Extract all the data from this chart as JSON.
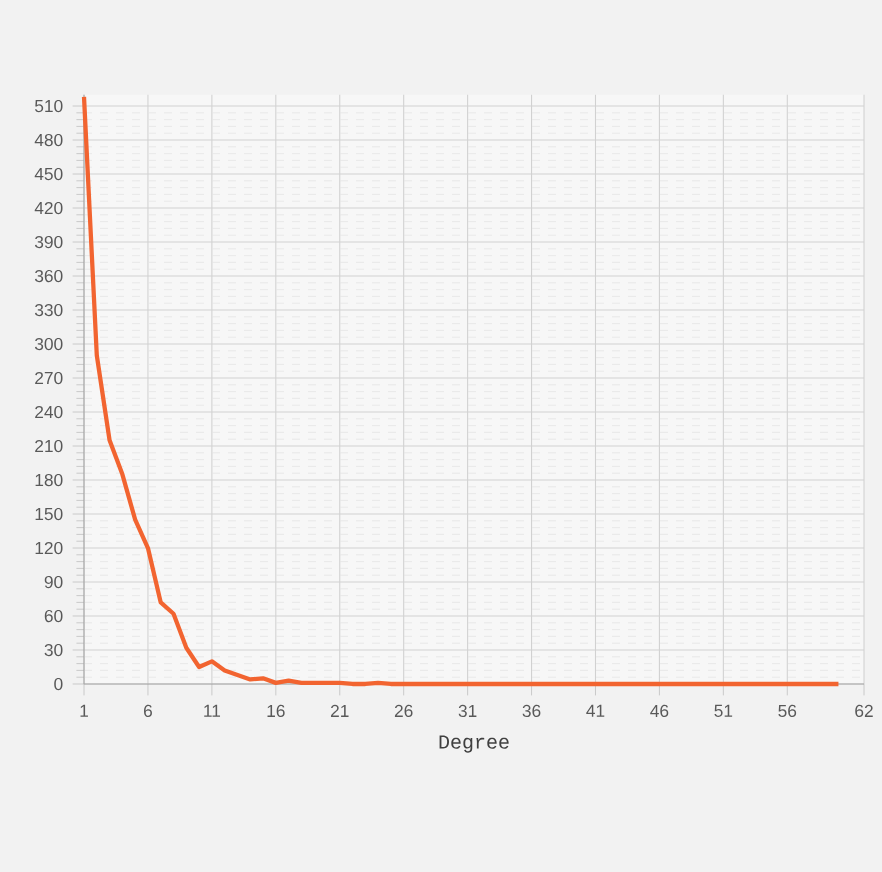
{
  "chart_data": {
    "type": "line",
    "xlabel": "Degree",
    "x": [
      1,
      2,
      3,
      4,
      5,
      6,
      7,
      8,
      9,
      10,
      11,
      12,
      13,
      14,
      15,
      16,
      17,
      18,
      19,
      20,
      21,
      22,
      23,
      24,
      25,
      26,
      27,
      28,
      29,
      30,
      31,
      32,
      33,
      34,
      35,
      36,
      37,
      38,
      39,
      40,
      41,
      42,
      43,
      44,
      45,
      46,
      47,
      48,
      49,
      50,
      51,
      52,
      53,
      54,
      55,
      56,
      57,
      58,
      59,
      60
    ],
    "values": [
      518,
      290,
      215,
      185,
      145,
      120,
      72,
      62,
      32,
      15,
      20,
      12,
      8,
      4,
      5,
      1,
      3,
      1,
      1,
      1,
      1,
      0,
      0,
      1,
      0,
      0,
      0,
      0,
      0,
      0,
      0,
      0,
      0,
      0,
      0,
      0,
      0,
      0,
      0,
      0,
      0,
      0,
      0,
      0,
      0,
      0,
      0,
      0,
      0,
      0,
      0,
      0,
      0,
      0,
      0,
      0,
      0,
      0,
      0,
      0
    ],
    "color": "#f26430",
    "xlim": [
      1,
      62
    ],
    "xticks": [
      1,
      6,
      11,
      16,
      21,
      26,
      31,
      36,
      41,
      46,
      51,
      56,
      62
    ],
    "ylim": [
      0,
      520
    ],
    "yticks": [
      0,
      30,
      60,
      90,
      120,
      150,
      180,
      210,
      240,
      270,
      300,
      330,
      360,
      390,
      420,
      450,
      480,
      510
    ],
    "grid": true,
    "marker": "none",
    "line_style": "solid"
  }
}
